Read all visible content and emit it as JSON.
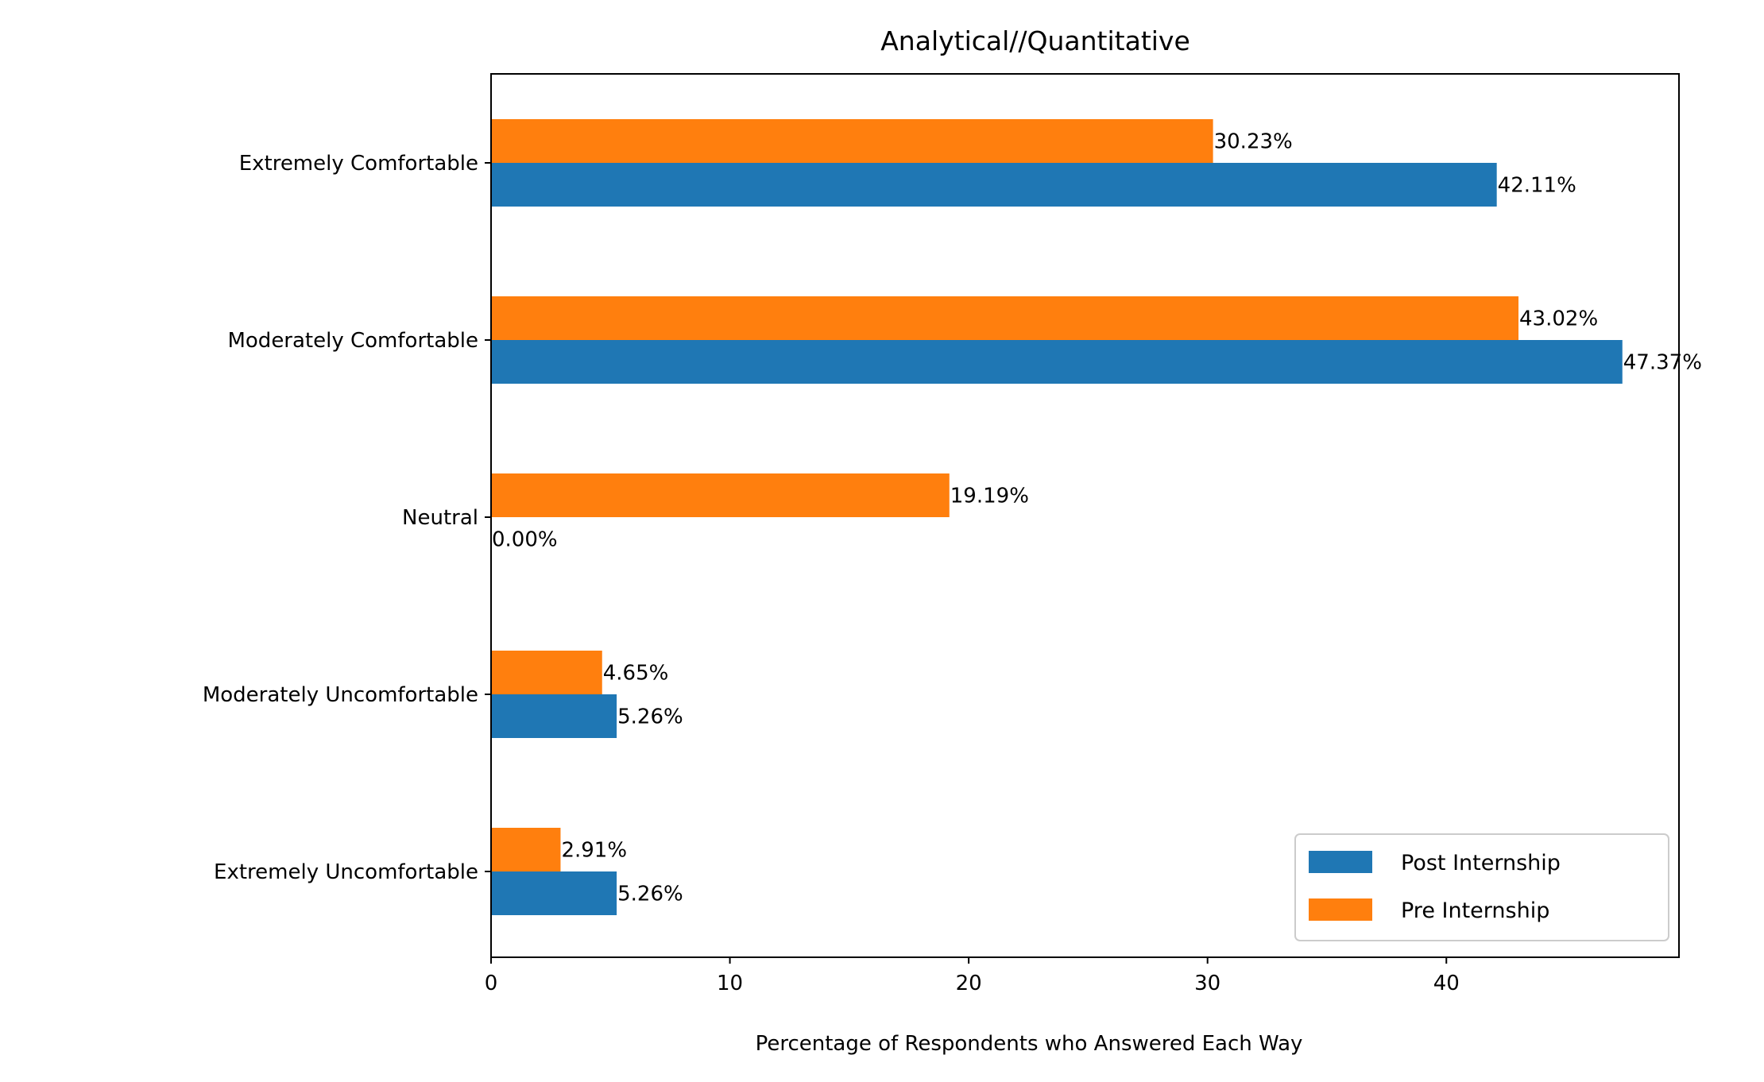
{
  "chart_data": {
    "type": "bar",
    "orientation": "horizontal",
    "title": "Analytical//Quantitative",
    "xlabel": "Percentage of Respondents who Answered Each Way",
    "ylabel": "",
    "xlim": [
      0,
      49.74
    ],
    "xticks": [
      0,
      10,
      20,
      30,
      40
    ],
    "categories": [
      "Extremely Comfortable",
      "Moderately Comfortable",
      "Neutral",
      "Moderately Uncomfortable",
      "Extremely Uncomfortable"
    ],
    "series": [
      {
        "name": "Post Internship",
        "color": "#1f77b4",
        "values": [
          42.11,
          47.37,
          0.0,
          5.26,
          5.26
        ],
        "labels": [
          "42.11%",
          "47.37%",
          "0.00%",
          "5.26%",
          "5.26%"
        ]
      },
      {
        "name": "Pre Internship",
        "color": "#ff7f0e",
        "values": [
          30.23,
          43.02,
          19.19,
          4.65,
          2.91
        ],
        "labels": [
          "30.23%",
          "43.02%",
          "19.19%",
          "4.65%",
          "2.91%"
        ]
      }
    ],
    "grid": false,
    "legend_position": "lower right"
  }
}
